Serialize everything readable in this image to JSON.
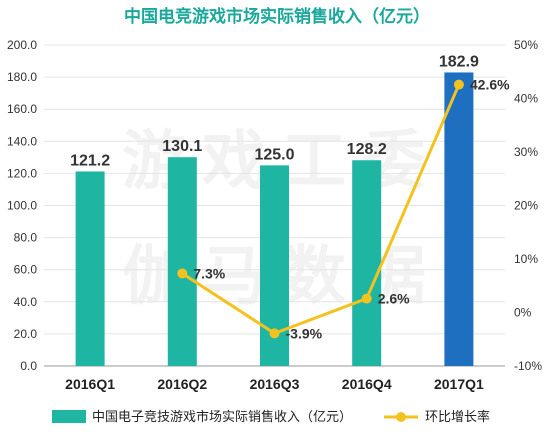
{
  "chart_data": {
    "type": "bar",
    "title": "中国电竞游戏市场实际销售收入（亿元）",
    "categories": [
      "2016Q1",
      "2016Q2",
      "2016Q3",
      "2016Q4",
      "2017Q1"
    ],
    "series": [
      {
        "name": "中国电子竞技游戏市场实际销售收入（亿元）",
        "type": "bar",
        "axis": "left",
        "values": [
          121.2,
          130.1,
          125.0,
          128.2,
          182.9
        ],
        "labels": [
          "121.2",
          "130.1",
          "125.0",
          "128.2",
          "182.9"
        ],
        "colors": [
          "#1fb5a3",
          "#1fb5a3",
          "#1fb5a3",
          "#1fb5a3",
          "#1e6fc0"
        ]
      },
      {
        "name": "环比增长率",
        "type": "line",
        "axis": "right",
        "values": [
          null,
          7.3,
          -3.9,
          2.6,
          42.6
        ],
        "labels": [
          "",
          "7.3%",
          "-3.9%",
          "2.6%",
          "42.6%"
        ],
        "color": "#f3c21e"
      }
    ],
    "ylim_left": [
      0,
      200
    ],
    "yticks_left": [
      "0.0",
      "20.0",
      "40.0",
      "60.0",
      "80.0",
      "100.0",
      "120.0",
      "140.0",
      "160.0",
      "180.0",
      "200.0"
    ],
    "ylim_right": [
      -10,
      50
    ],
    "yticks_right": [
      "-10%",
      "0%",
      "10%",
      "20%",
      "30%",
      "40%",
      "50%"
    ],
    "grid": true,
    "legend_position": "bottom"
  },
  "watermark": {
    "line1": "游戏工委",
    "line2": "伽马数据"
  }
}
